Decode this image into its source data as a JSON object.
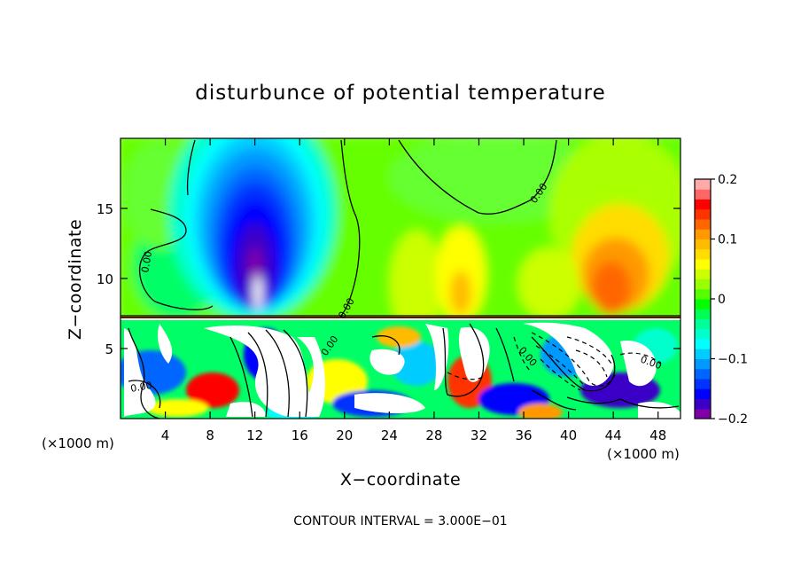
{
  "chart_data": {
    "type": "heatmap",
    "title": "disturbunce of potential temperature",
    "xlabel": "X−coordinate",
    "ylabel": "Z−coordinate",
    "x_unit_left": "(×1000 m)",
    "x_unit_right": "(×1000 m)",
    "footer": "CONTOUR INTERVAL = 3.000E−01",
    "xlim": [
      0,
      50
    ],
    "ylim": [
      0,
      20
    ],
    "x_ticks": [
      "4",
      "8",
      "12",
      "16",
      "20",
      "24",
      "28",
      "32",
      "36",
      "40",
      "44",
      "48"
    ],
    "y_ticks": [
      "5",
      "10",
      "15"
    ],
    "x_tick_values": [
      4,
      8,
      12,
      16,
      20,
      24,
      28,
      32,
      36,
      40,
      44,
      48
    ],
    "y_tick_values": [
      5,
      10,
      15
    ],
    "colorbar": {
      "min": -0.2,
      "max": 0.2,
      "tick_labels": [
        "0.2",
        "0.1",
        "0",
        "−0.1",
        "−0.2"
      ],
      "tick_values": [
        0.2,
        0.1,
        0,
        -0.1,
        -0.2
      ],
      "colors": [
        "#7f00a8",
        "#3b00c8",
        "#0000ff",
        "#0033ff",
        "#0066ff",
        "#0099ff",
        "#00ccff",
        "#00ffff",
        "#00ffcc",
        "#00ff99",
        "#00ff55",
        "#00ff00",
        "#55ff00",
        "#99ff00",
        "#ccff00",
        "#ffff00",
        "#ffdd00",
        "#ffbb00",
        "#ff9900",
        "#ff6600",
        "#ff3300",
        "#ff0000",
        "#ff6666",
        "#ffaaaa"
      ]
    },
    "contour_labels": [
      "0.00",
      "0.00",
      "0.00",
      "0.00",
      "0.00",
      "0.00",
      "0.00"
    ],
    "grid": false
  }
}
